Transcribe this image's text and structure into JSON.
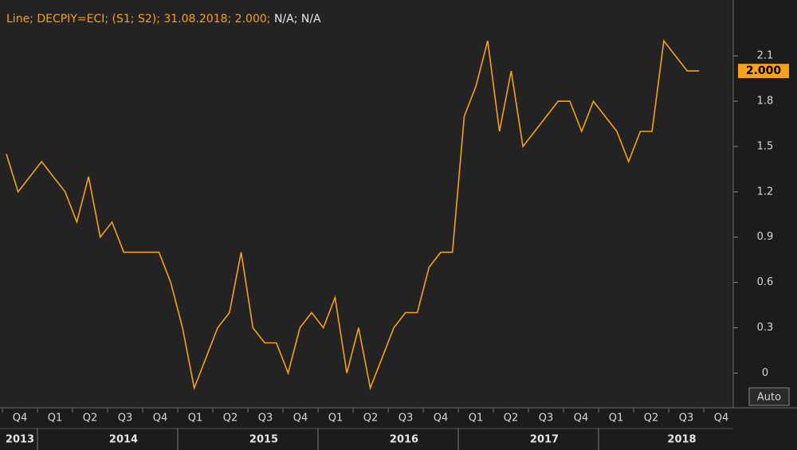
{
  "chart_data": {
    "type": "line",
    "header": {
      "series_text": "Line; DECPIY=ECI; (S1; S2); 31.08.2018; 2.000;",
      "extra_text": "N/A; N/A"
    },
    "series": [
      {
        "name": "DECPIY=ECI",
        "color": "#f7a11a",
        "values": [
          1.45,
          1.2,
          1.3,
          1.4,
          1.3,
          1.2,
          1.0,
          1.3,
          0.9,
          1.0,
          0.8,
          0.8,
          0.8,
          0.8,
          0.6,
          0.3,
          -0.1,
          0.1,
          0.3,
          0.4,
          0.8,
          0.3,
          0.2,
          0.2,
          0.0,
          0.3,
          0.4,
          0.3,
          0.5,
          0.0,
          0.3,
          -0.1,
          0.1,
          0.3,
          0.4,
          0.4,
          0.7,
          0.8,
          0.8,
          1.7,
          1.9,
          2.2,
          1.6,
          2.0,
          1.5,
          1.6,
          1.7,
          1.8,
          1.8,
          1.6,
          1.8,
          1.7,
          1.6,
          1.4,
          1.6,
          1.6,
          2.2,
          2.1,
          2.0,
          2.0
        ]
      }
    ],
    "last_value_label": "2.000",
    "ylim": [
      -0.23,
      2.47
    ],
    "yticks": [
      0,
      0.3,
      0.6,
      0.9,
      1.2,
      1.5,
      1.8,
      2.1
    ],
    "x_axis": {
      "years": [
        {
          "year": "2013",
          "quarters": [
            "Q4"
          ]
        },
        {
          "year": "2014",
          "quarters": [
            "Q1",
            "Q2",
            "Q3",
            "Q4"
          ]
        },
        {
          "year": "2015",
          "quarters": [
            "Q1",
            "Q2",
            "Q3",
            "Q4"
          ]
        },
        {
          "year": "2016",
          "quarters": [
            "Q1",
            "Q2",
            "Q3",
            "Q4"
          ]
        },
        {
          "year": "2017",
          "quarters": [
            "Q1",
            "Q2",
            "Q3",
            "Q4"
          ]
        },
        {
          "year": "2018",
          "quarters": [
            "Q1",
            "Q2",
            "Q3",
            "Q4"
          ]
        }
      ]
    },
    "scale_button": "Auto",
    "grid": false
  }
}
